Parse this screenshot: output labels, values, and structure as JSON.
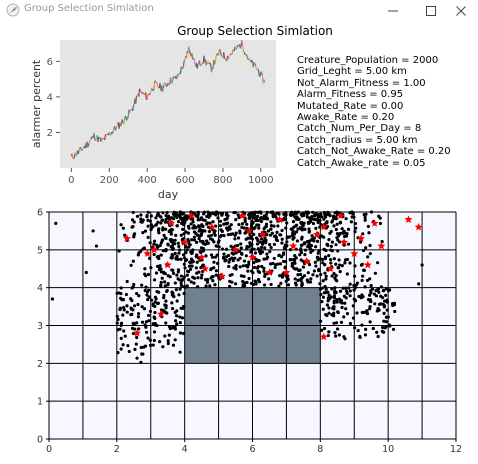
{
  "window": {
    "title": "Group Selection Simlation",
    "icon": "python-feather-icon",
    "controls": [
      "minimize-icon",
      "maximize-icon",
      "close-icon"
    ]
  },
  "figure": {
    "title": "Group Selection Simlation"
  },
  "parameters": [
    "Creature_Population = 2000",
    "Grid_Leght = 5.00 km",
    "Not_Alarm_Fitness = 1.00",
    "Alarm_Fitness = 0.95",
    "Mutated_Rate = 0.00",
    "Awake_Rate = 0.20",
    "Catch_Num_Per_Day = 8",
    "Catch_radius = 5.00 km",
    "Catch_Not_Awake_Rate = 0.20",
    "Catch_Awake_rate = 0.05"
  ],
  "chart_data": [
    {
      "type": "line",
      "xlabel": "day",
      "ylabel": "alarmer percent",
      "xlim": [
        -60,
        1080
      ],
      "ylim": [
        0,
        7.2
      ],
      "xticks": [
        0,
        200,
        400,
        600,
        800,
        1000
      ],
      "yticks": [
        2,
        4,
        6
      ],
      "grid": false,
      "background": "#e5e5e5",
      "series": [
        {
          "x": [
            0,
            40,
            80,
            120,
            160,
            200,
            240,
            280,
            320,
            360,
            400,
            440,
            480,
            520,
            560,
            600,
            620,
            660,
            700,
            740,
            780,
            820,
            860,
            900,
            940,
            980,
            1020
          ],
          "y": [
            0.6,
            0.9,
            1.3,
            1.8,
            1.5,
            1.9,
            2.3,
            2.7,
            3.3,
            4.3,
            4.0,
            4.7,
            4.5,
            4.9,
            5.1,
            6.0,
            6.8,
            5.7,
            6.1,
            5.6,
            6.5,
            6.2,
            6.6,
            7.0,
            6.0,
            5.6,
            4.8
          ]
        }
      ],
      "series_colors": [
        "#1f77b4",
        "#ff7f0e",
        "#2ca02c",
        "#9467bd",
        "#8c564b",
        "#e377c2",
        "#bcbd22",
        "#17becf",
        "#d62728"
      ]
    },
    {
      "type": "scatter",
      "xlim": [
        0,
        12
      ],
      "ylim": [
        0,
        6
      ],
      "xticks": [
        0,
        2,
        4,
        6,
        8,
        10,
        12
      ],
      "yticks": [
        0,
        1,
        2,
        3,
        4,
        5,
        6
      ],
      "grid": true,
      "grid_step_x": 1,
      "grid_step_y": 1,
      "background": "#f7f8ff",
      "region": {
        "x": [
          4,
          8
        ],
        "y": [
          2,
          4
        ],
        "color": "#708090"
      },
      "dense_region": {
        "x": [
          2,
          10
        ],
        "y": [
          4,
          6
        ]
      },
      "dot_color": "#000000",
      "star_color": "#ff0000",
      "stars": [
        [
          2.3,
          5.3
        ],
        [
          2.6,
          2.8
        ],
        [
          3.3,
          3.3
        ],
        [
          2.9,
          4.9
        ],
        [
          4.2,
          5.9
        ],
        [
          3.6,
          5.7
        ],
        [
          4.8,
          5.6
        ],
        [
          5.7,
          5.9
        ],
        [
          6.3,
          5.4
        ],
        [
          5.5,
          5.0
        ],
        [
          4.5,
          4.8
        ],
        [
          3.5,
          4.6
        ],
        [
          6.8,
          5.8
        ],
        [
          7.2,
          5.1
        ],
        [
          8.1,
          5.6
        ],
        [
          8.6,
          5.9
        ],
        [
          9.2,
          5.3
        ],
        [
          9.6,
          5.7
        ],
        [
          10.6,
          5.8
        ],
        [
          10.9,
          5.6
        ],
        [
          9.0,
          4.9
        ],
        [
          8.3,
          4.5
        ],
        [
          7.6,
          4.7
        ],
        [
          6.5,
          4.4
        ],
        [
          5.1,
          4.3
        ],
        [
          8.1,
          2.7
        ],
        [
          4.0,
          5.2
        ],
        [
          6.0,
          4.8
        ],
        [
          7.9,
          5.4
        ],
        [
          9.8,
          5.1
        ],
        [
          3.1,
          5.0
        ],
        [
          5.9,
          5.5
        ],
        [
          7.0,
          4.4
        ],
        [
          8.7,
          5.2
        ],
        [
          9.4,
          4.6
        ],
        [
          4.6,
          4.5
        ]
      ]
    }
  ]
}
